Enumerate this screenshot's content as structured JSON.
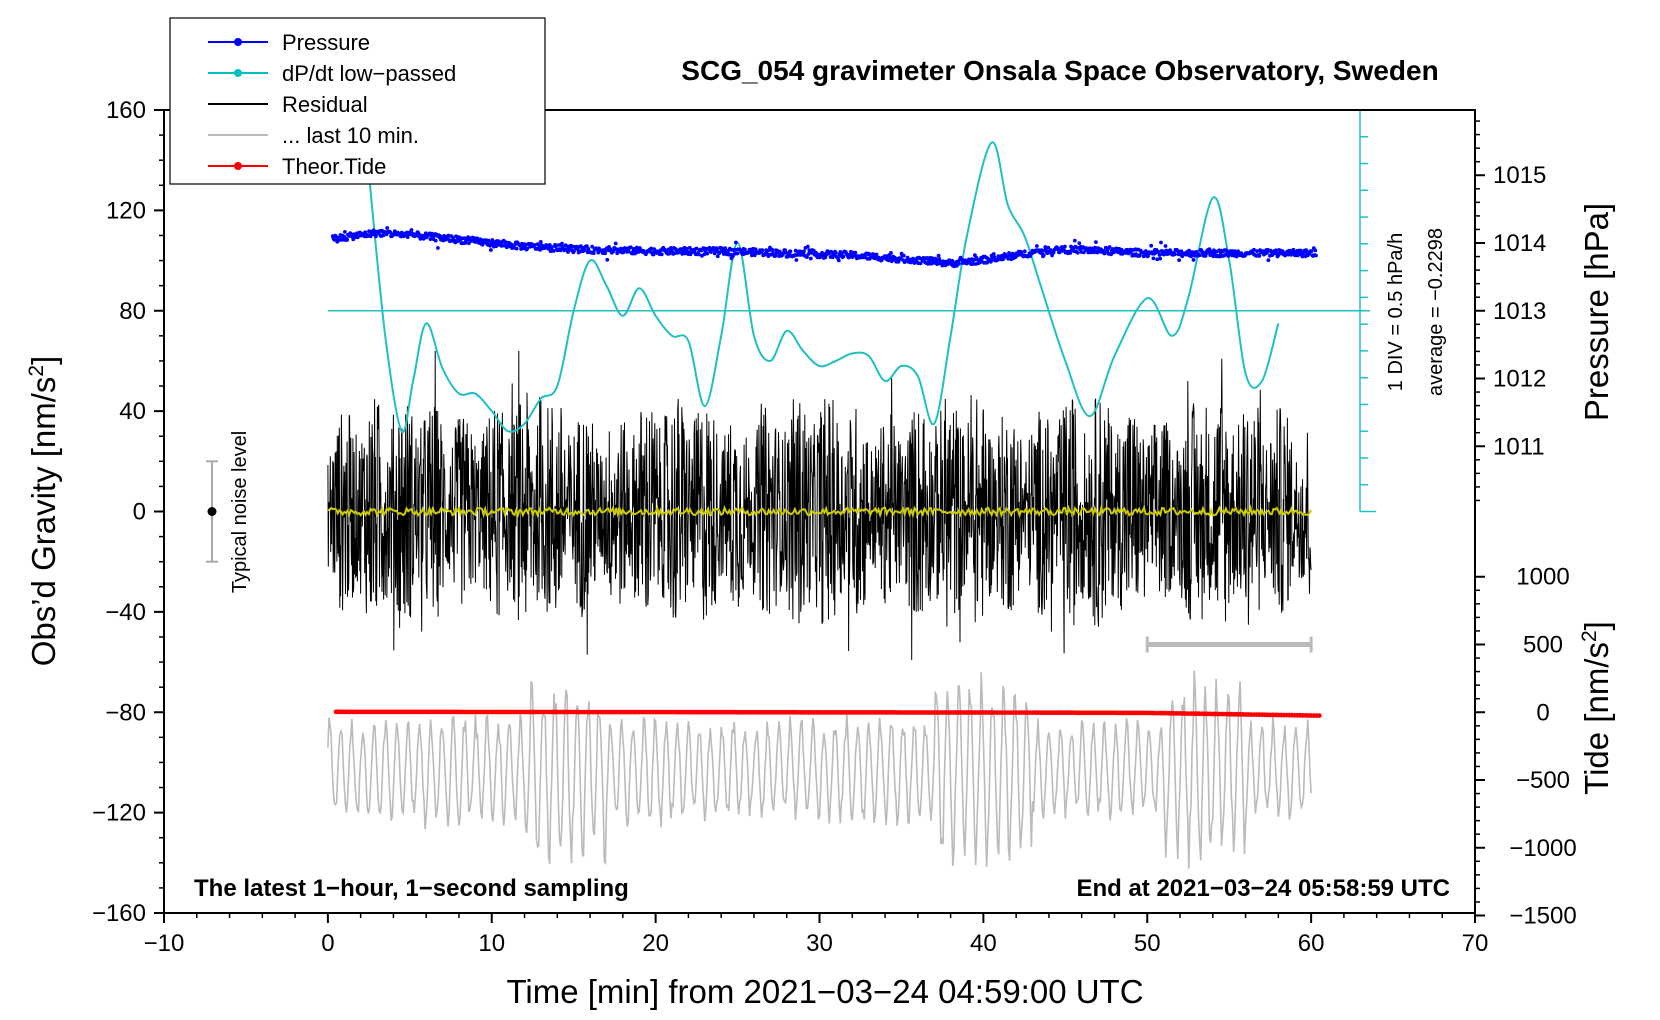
{
  "chart_data": {
    "type": "line",
    "title": "SCG_054 gravimeter Onsala Space Observatory, Sweden",
    "xlabel": "Time [min] from 2021−03−24 04:59:00 UTC",
    "ylabel_left": "Obs’d Gravity [nm/s²]",
    "ylabel_left_text": "Obs’d Gravity [nm/s",
    "ylabel_left_sup": "2",
    "ylabel_left_end": "]",
    "ylabel_pressure": "Pressure [hPa]",
    "ylabel_tide_text": "Tide [nm/s",
    "ylabel_tide_sup": "2",
    "ylabel_tide_end": "]",
    "xlim": [
      -10,
      70
    ],
    "ylim": [
      -160,
      160
    ],
    "x_ticks": [
      -10,
      0,
      10,
      20,
      30,
      40,
      50,
      60,
      70
    ],
    "x_tick_labels": [
      "−10",
      "0",
      "10",
      "20",
      "30",
      "40",
      "50",
      "60",
      "70"
    ],
    "y_ticks": [
      160,
      120,
      80,
      40,
      0,
      -40,
      -80,
      -120,
      -160
    ],
    "y_tick_labels": [
      "160",
      "120",
      "80",
      "40",
      "0",
      "−40",
      "−80",
      "−120",
      "−160"
    ],
    "pressure_axis": {
      "ticks": [
        1011,
        1012,
        1013,
        1014,
        1015
      ],
      "tick_labels": [
        "1011",
        "1012",
        "1013",
        "1014",
        "1015"
      ],
      "anchor_hpa": 1013,
      "anchor_nms2": 80,
      "nms2_per_hpa": 27
    },
    "tide_axis": {
      "ticks": [
        1000,
        500,
        0,
        -500,
        -1000,
        -1500
      ],
      "tick_labels": [
        "1000",
        "500",
        "0",
        "−500",
        "−1000",
        "−1500"
      ],
      "nms2_per_unit": 0.054,
      "zero_at": -80
    },
    "legend": [
      {
        "label": "Pressure",
        "color": "#0000ff",
        "marker": true
      },
      {
        "label": "dP/dt low−passed",
        "color": "#00c0c0",
        "marker": true
      },
      {
        "label": "Residual",
        "color": "#000000",
        "marker": false
      },
      {
        "label": "... last 10 min.",
        "color": "#bbbbbb",
        "marker": false
      },
      {
        "label": "Theor.Tide",
        "color": "#ff0000",
        "marker": true
      }
    ],
    "series": [
      {
        "name": "Pressure",
        "units": "hPa",
        "color": "#0000ff",
        "x": [
          0,
          3,
          5,
          8,
          12,
          16,
          20,
          24,
          28,
          32,
          36,
          38,
          40,
          42,
          44,
          46,
          50,
          54,
          58,
          60
        ],
        "values": [
          1014.05,
          1014.15,
          1014.12,
          1014.05,
          1013.95,
          1013.9,
          1013.88,
          1013.88,
          1013.85,
          1013.82,
          1013.75,
          1013.7,
          1013.75,
          1013.82,
          1013.9,
          1013.9,
          1013.85,
          1013.85,
          1013.85,
          1013.85
        ]
      },
      {
        "name": "dP/dt low−passed",
        "units": "nm/s² (plotted)",
        "color": "#00c0c0",
        "x": [
          2.5,
          3.5,
          4.5,
          5.2,
          6,
          7,
          8,
          9,
          10,
          11,
          12,
          13,
          14,
          15,
          16,
          17,
          18,
          19,
          20,
          21,
          22,
          23,
          24,
          25,
          26,
          27,
          28,
          29,
          30,
          31,
          32,
          33,
          34,
          35,
          36,
          37,
          38,
          39,
          40.5,
          41.5,
          42.5,
          43.5,
          45,
          46.5,
          48,
          50,
          51.5,
          52.5,
          54,
          55,
          56,
          57,
          58
        ],
        "values": [
          135,
          70,
          32,
          52,
          75,
          57,
          47,
          47,
          40,
          32,
          35,
          45,
          50,
          80,
          100,
          90,
          78,
          89,
          78,
          70,
          68,
          42,
          70,
          107,
          70,
          60,
          72,
          64,
          58,
          60,
          63,
          62,
          52,
          58,
          54,
          35,
          70,
          110,
          147,
          122,
          110,
          90,
          60,
          38,
          62,
          85,
          70,
          85,
          125,
          100,
          55,
          52,
          75
        ]
      },
      {
        "name": "Residual",
        "units": "nm/s²",
        "color": "#000000",
        "x_range": [
          0,
          60
        ],
        "approx_range": [
          -62,
          64
        ]
      },
      {
        "name": "Residual (smoothed)",
        "units": "nm/s²",
        "color": "#cccc00",
        "x": [
          0,
          60
        ],
        "values": [
          0,
          0
        ]
      },
      {
        "name": "... last 10 min.",
        "units": "nm/s²",
        "color": "#bbbbbb",
        "x_range": [
          0,
          60
        ],
        "approx_range": [
          -160,
          -55
        ]
      },
      {
        "name": "Theor.Tide",
        "units": "nm/s²",
        "color": "#ff0000",
        "x": [
          0.5,
          10,
          20,
          30,
          40,
          50,
          60.5
        ],
        "values": [
          3,
          2,
          1,
          -1,
          -2,
          -5,
          -25
        ]
      }
    ],
    "dpdt_scale": {
      "label_div": "1 DIV = 0.5 hPa/h",
      "label_avg": "average = −0.2298",
      "avg_line_y": 80
    },
    "noise_bar": {
      "label": "Typical noise level",
      "center": 0,
      "half_range": 20
    },
    "last10_bar": {
      "x_from": 50,
      "x_to": 60,
      "y": -53
    },
    "annotation_left": "The latest 1−hour, 1−second sampling",
    "annotation_right": "End at 2021−03−24 05:58:59 UTC",
    "grid": false
  }
}
